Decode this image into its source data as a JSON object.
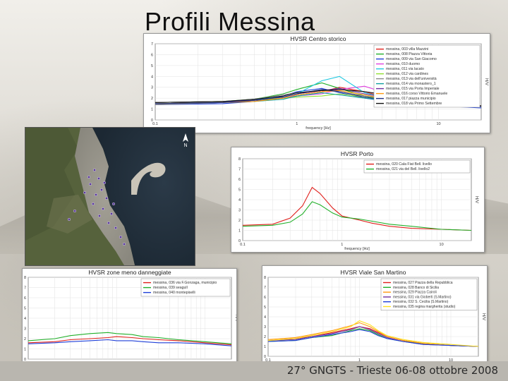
{
  "slide": {
    "title": "Profili Messina",
    "footer": "27° GNGTS - Trieste 06-08 ottobre 2008"
  },
  "colors": {
    "red": "#e0201c",
    "green": "#22b02a",
    "blue": "#1f3fd8",
    "cyan": "#1ec8e0",
    "magenta": "#e040e0",
    "purple": "#7030a0",
    "black": "#111111",
    "orange": "#ff9a10",
    "yellow": "#ffe020",
    "darkgreen": "#3a7a2a",
    "gray": "#8a8a8a",
    "teal": "#10a0a0",
    "brown": "#8a5020",
    "lime": "#90e030",
    "pink": "#ff80c0",
    "navy": "#203080"
  },
  "map": {
    "north_label": "N"
  },
  "chart_data": [
    {
      "type": "line",
      "title": "HVSR Centro storico",
      "xlabel": "frequency [Hz]",
      "ylabel": "H/V",
      "xscale": "log",
      "xlim": [
        0.1,
        20
      ],
      "ylim": [
        0,
        7
      ],
      "xticks": [
        "0.1",
        "1",
        "10"
      ],
      "yticks": [
        "0",
        "1",
        "2",
        "3",
        "4",
        "5",
        "6",
        "7"
      ],
      "grid": true,
      "legend": "top-right",
      "x": [
        0.1,
        0.3,
        0.5,
        0.8,
        1,
        1.5,
        2,
        3,
        5,
        10,
        20
      ],
      "series": [
        {
          "name": "messina, 003 villa Mazzini",
          "color": "red",
          "values": [
            1.5,
            1.6,
            1.8,
            2.0,
            2.3,
            2.6,
            3.0,
            2.6,
            1.8,
            1.4,
            1.2
          ]
        },
        {
          "name": "messina, 008 Piazza Vittoria",
          "color": "green",
          "values": [
            1.6,
            1.7,
            1.9,
            2.4,
            2.8,
            3.4,
            2.9,
            2.2,
            1.7,
            1.3,
            1.2
          ]
        },
        {
          "name": "messina, 009 via San Giacomo",
          "color": "blue",
          "values": [
            1.4,
            1.5,
            1.7,
            2.2,
            2.6,
            2.9,
            2.5,
            2.0,
            1.6,
            1.3,
            1.1
          ]
        },
        {
          "name": "messina, 010 duomo",
          "color": "magenta",
          "values": [
            1.5,
            1.6,
            1.8,
            2.0,
            2.2,
            2.4,
            2.8,
            3.1,
            2.2,
            1.5,
            1.3
          ]
        },
        {
          "name": "messina, 011 via lacato",
          "color": "cyan",
          "values": [
            1.5,
            1.6,
            1.9,
            2.1,
            2.4,
            3.6,
            4.0,
            2.5,
            1.8,
            1.4,
            1.2
          ]
        },
        {
          "name": "messina, 012 via cardines",
          "color": "lime",
          "values": [
            1.6,
            1.7,
            1.8,
            2.0,
            2.1,
            2.2,
            2.4,
            2.1,
            1.8,
            1.4,
            1.3
          ]
        },
        {
          "name": "messina, 013 via dell'università",
          "color": "gray",
          "values": [
            1.4,
            1.6,
            1.9,
            2.3,
            2.5,
            2.7,
            2.6,
            2.2,
            1.9,
            1.6,
            1.3
          ]
        },
        {
          "name": "messina, 014 via monastero_1",
          "color": "teal",
          "values": [
            1.5,
            1.6,
            1.7,
            1.9,
            2.2,
            2.5,
            2.3,
            2.0,
            1.7,
            1.4,
            1.2
          ]
        },
        {
          "name": "messina, 015 via Porta Imperiale",
          "color": "purple",
          "values": [
            1.6,
            1.7,
            1.8,
            2.1,
            2.4,
            2.7,
            2.9,
            2.4,
            1.9,
            1.5,
            1.3
          ]
        },
        {
          "name": "messina, 016 corso Vittorio Emanuele",
          "color": "orange",
          "values": [
            1.5,
            1.6,
            1.7,
            2.0,
            2.3,
            2.6,
            2.7,
            2.3,
            1.8,
            1.4,
            1.2
          ]
        },
        {
          "name": "messina, 017 piazza municipio",
          "color": "navy",
          "values": [
            1.5,
            1.6,
            1.8,
            2.1,
            2.4,
            2.8,
            2.6,
            2.1,
            1.7,
            1.4,
            1.2
          ]
        },
        {
          "name": "messina, 018 via Primo Settembre",
          "color": "black",
          "values": [
            1.6,
            1.7,
            1.9,
            2.2,
            2.5,
            2.7,
            2.8,
            2.6,
            2.2,
            1.6,
            1.3
          ]
        }
      ]
    },
    {
      "type": "line",
      "title": "HVSR Porto",
      "xlabel": "frequency [Hz]",
      "ylabel": "H/V",
      "xscale": "log",
      "xlim": [
        0.1,
        20
      ],
      "ylim": [
        0,
        8
      ],
      "xticks": [
        "0.1",
        "1",
        "10"
      ],
      "yticks": [
        "0",
        "1",
        "2",
        "3",
        "4",
        "5",
        "6",
        "7",
        "8"
      ],
      "grid": true,
      "legend": "top-right",
      "x": [
        0.1,
        0.2,
        0.3,
        0.4,
        0.5,
        0.6,
        0.8,
        1,
        1.5,
        2,
        3,
        5,
        10,
        20
      ],
      "series": [
        {
          "name": "messina, 020 Cala Fiat Bell. livello",
          "color": "red",
          "values": [
            1.5,
            1.6,
            2.2,
            3.4,
            5.2,
            4.6,
            3.2,
            2.4,
            2.0,
            1.7,
            1.4,
            1.2,
            1.1,
            1.0
          ]
        },
        {
          "name": "messina, 021 via del Bell. livello2",
          "color": "green",
          "values": [
            1.4,
            1.5,
            1.8,
            2.6,
            3.8,
            3.5,
            2.7,
            2.3,
            2.1,
            1.9,
            1.6,
            1.4,
            1.1,
            1.0
          ]
        }
      ]
    },
    {
      "type": "line",
      "title": "HVSR zone meno danneggiate",
      "xlabel": "frequency [Hz]",
      "ylabel": "H/V",
      "xscale": "log",
      "xlim": [
        0.1,
        20
      ],
      "ylim": [
        0,
        8
      ],
      "xticks": [
        "0.1",
        "1",
        "10"
      ],
      "yticks": [
        "0",
        "1",
        "2",
        "3",
        "4",
        "5",
        "6",
        "7",
        "8"
      ],
      "grid": true,
      "legend": "top-right",
      "x": [
        0.1,
        0.2,
        0.3,
        0.5,
        0.8,
        1,
        1.5,
        2,
        3,
        5,
        10,
        20
      ],
      "series": [
        {
          "name": "messina, 036 via F.Gonzaga, municipio",
          "color": "red",
          "values": [
            1.6,
            1.7,
            1.9,
            2.0,
            2.1,
            2.2,
            2.1,
            2.0,
            1.9,
            1.8,
            1.6,
            1.4
          ]
        },
        {
          "name": "messina, 039 seagull",
          "color": "green",
          "values": [
            1.8,
            2.0,
            2.3,
            2.5,
            2.6,
            2.5,
            2.4,
            2.2,
            2.1,
            1.9,
            1.7,
            1.5
          ]
        },
        {
          "name": "messina, 040 montepiselli",
          "color": "blue",
          "values": [
            1.5,
            1.6,
            1.7,
            1.8,
            1.9,
            1.8,
            1.8,
            1.7,
            1.6,
            1.6,
            1.5,
            1.3
          ]
        }
      ]
    },
    {
      "type": "line",
      "title": "HVSR Viale San Martino",
      "xlabel": "frequency [Hz]",
      "ylabel": "H/V",
      "xscale": "log",
      "xlim": [
        0.1,
        20
      ],
      "ylim": [
        0,
        8
      ],
      "xticks": [
        "0.1",
        "1",
        "10"
      ],
      "yticks": [
        "0",
        "1",
        "2",
        "3",
        "4",
        "5",
        "6",
        "7",
        "8"
      ],
      "grid": true,
      "legend": "top-right",
      "x": [
        0.1,
        0.2,
        0.3,
        0.5,
        0.8,
        1,
        1.3,
        1.6,
        2,
        3,
        5,
        10,
        20
      ],
      "series": [
        {
          "name": "messina, 027 Piazza della Repubblica",
          "color": "red",
          "values": [
            1.6,
            1.8,
            2.0,
            2.4,
            2.8,
            3.0,
            2.8,
            2.4,
            2.0,
            1.6,
            1.3,
            1.1,
            1.0
          ]
        },
        {
          "name": "messina, 028 Banco di Sicilia",
          "color": "green",
          "values": [
            1.5,
            1.6,
            1.9,
            2.1,
            2.6,
            2.8,
            2.6,
            2.2,
            1.8,
            1.5,
            1.3,
            1.1,
            1.0
          ]
        },
        {
          "name": "messina, 029 Piazza Cairoli",
          "color": "orange",
          "values": [
            1.7,
            1.9,
            2.2,
            2.6,
            3.1,
            3.4,
            3.0,
            2.5,
            2.0,
            1.6,
            1.3,
            1.1,
            1.0
          ]
        },
        {
          "name": "messina, 031 via Gioberti (S.Martino)",
          "color": "purple",
          "values": [
            1.6,
            1.7,
            2.0,
            2.3,
            2.7,
            3.0,
            2.7,
            2.3,
            1.9,
            1.5,
            1.2,
            1.1,
            1.0
          ]
        },
        {
          "name": "messina, 032 S. Cecilia (S.Martino)",
          "color": "blue",
          "values": [
            1.5,
            1.6,
            1.9,
            2.2,
            2.5,
            2.7,
            2.5,
            2.1,
            1.8,
            1.5,
            1.2,
            1.1,
            1.0
          ]
        },
        {
          "name": "messina, 035 regina margherita (studio)",
          "color": "yellow",
          "values": [
            1.6,
            1.8,
            2.1,
            2.5,
            3.0,
            3.6,
            3.2,
            2.6,
            2.1,
            1.7,
            1.4,
            1.2,
            1.0
          ]
        }
      ]
    }
  ]
}
